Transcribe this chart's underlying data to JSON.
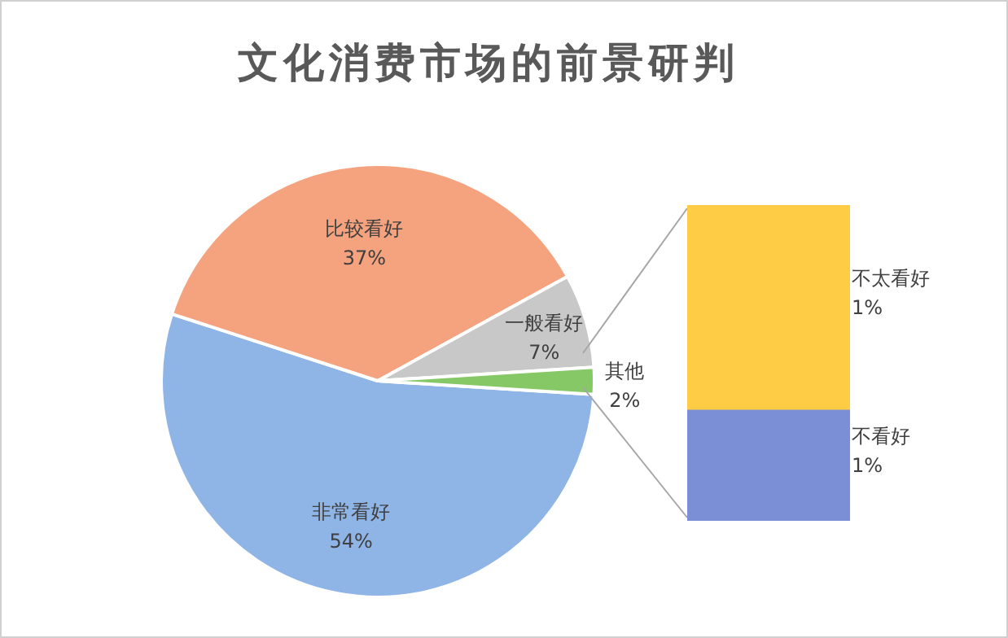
{
  "chart_data": [
    {
      "type": "pie",
      "title": "文化消费市场的前景研判",
      "categories": [
        "非常看好",
        "比较看好",
        "一般看好",
        "其他"
      ],
      "values": [
        54,
        37,
        7,
        2
      ],
      "value_labels": [
        "54%",
        "37%",
        "7%",
        "2%"
      ],
      "colors": [
        "#8fb4e6",
        "#f5a37e",
        "#c8c8c8",
        "#86c766"
      ],
      "legend": false
    },
    {
      "type": "bar",
      "stacked": true,
      "categories": [
        null
      ],
      "series": [
        {
          "name": "不看好",
          "color": "#7b8fd6",
          "values": [
            0.7
          ],
          "value_labels": [
            "1%"
          ]
        },
        {
          "name": "不太看好",
          "color": "#ffcd45",
          "values": [
            1.3
          ],
          "value_labels": [
            "1%"
          ]
        }
      ],
      "legend": false
    }
  ]
}
